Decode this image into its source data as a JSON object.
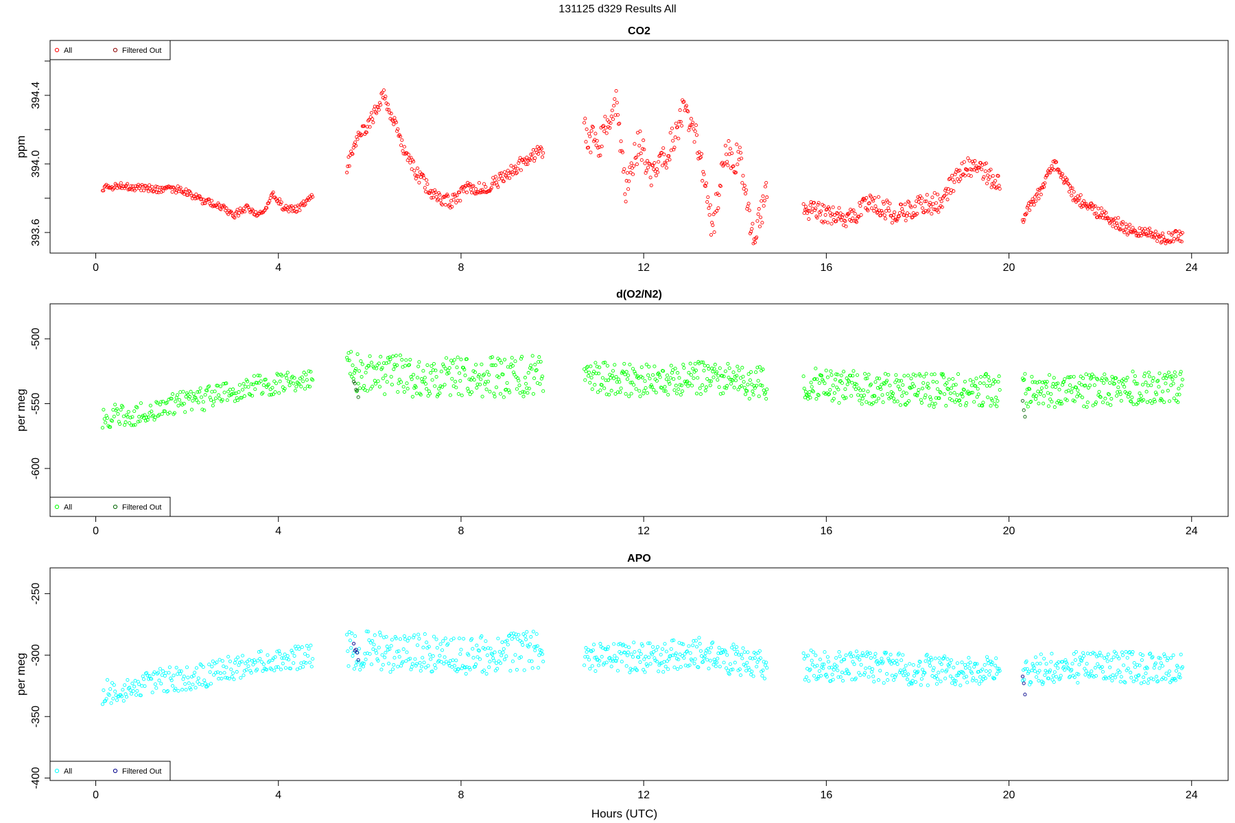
{
  "figure": {
    "title": "131125    d329    Results All",
    "xlabel": "Hours (UTC)"
  },
  "chart_data": [
    {
      "type": "scatter",
      "title": "CO2",
      "ylabel": "ppm",
      "xlim": [
        -1.0,
        24.8
      ],
      "ylim": [
        393.48,
        394.72
      ],
      "xticks": [
        0,
        4,
        8,
        12,
        16,
        20,
        24
      ],
      "xtick_labels": [
        "0",
        "4",
        "8",
        "12",
        "16",
        "20",
        "24"
      ],
      "yticks": [
        393.6,
        393.8,
        394.0,
        394.2,
        394.4,
        394.6
      ],
      "ytick_labels": [
        "393.6",
        "",
        "394.0",
        "",
        "394.4",
        ""
      ],
      "legend": {
        "position": "top-left",
        "entries": [
          {
            "label": "All",
            "color": "#ff0000"
          },
          {
            "label": "Filtered Out",
            "color": "#8b0000"
          }
        ]
      },
      "series": [
        {
          "name": "All",
          "color": "#ff0000",
          "segments": [
            {
              "x": [
                0.15,
                0.6,
                1.0,
                1.5,
                1.9,
                2.3,
                2.7,
                3.0,
                3.3,
                3.6,
                3.9,
                4.1,
                4.4,
                4.75
              ],
              "y": [
                393.86,
                393.87,
                393.86,
                393.85,
                393.85,
                393.79,
                393.76,
                393.7,
                393.74,
                393.7,
                393.82,
                393.75,
                393.73,
                393.82
              ],
              "noise": 0.02,
              "count": 230
            },
            {
              "x": [
                5.5,
                5.8,
                6.0,
                6.3,
                6.7,
                7.0,
                7.4,
                7.8,
                8.1,
                8.5,
                9.0,
                9.4,
                9.8
              ],
              "y": [
                393.98,
                394.18,
                394.24,
                394.4,
                394.12,
                393.95,
                393.82,
                393.78,
                393.85,
                393.86,
                393.93,
                394.02,
                394.08
              ],
              "noise": 0.04,
              "count": 240
            },
            {
              "x": [
                10.7,
                11.0,
                11.4,
                11.6,
                11.9,
                12.2,
                12.5,
                12.9,
                13.2,
                13.5,
                13.8,
                14.1,
                14.4,
                14.7
              ],
              "y": [
                394.2,
                394.1,
                394.38,
                393.85,
                394.12,
                393.92,
                394.05,
                394.32,
                394.1,
                393.62,
                394.05,
                394.02,
                393.55,
                393.85
              ],
              "noise": 0.09,
              "count": 230
            },
            {
              "x": [
                15.5,
                16.0,
                16.5,
                17.0,
                17.5,
                18.0,
                18.5,
                19.0,
                19.5,
                19.8
              ],
              "y": [
                393.74,
                393.7,
                393.68,
                393.78,
                393.7,
                393.75,
                393.78,
                393.98,
                393.95,
                393.88
              ],
              "noise": 0.06,
              "count": 260
            },
            {
              "x": [
                20.3,
                20.7,
                21.0,
                21.4,
                21.8,
                22.2,
                22.6,
                23.0,
                23.4,
                23.8
              ],
              "y": [
                393.68,
                393.85,
                394.0,
                393.82,
                393.74,
                393.68,
                393.62,
                393.6,
                393.57,
                393.58
              ],
              "noise": 0.035,
              "count": 210
            }
          ]
        },
        {
          "name": "Filtered Out",
          "color": "#8b0000",
          "segments": []
        }
      ]
    },
    {
      "type": "scatter",
      "title": "d(O2/N2)",
      "ylabel": "per meg",
      "xlim": [
        -1.0,
        24.8
      ],
      "ylim": [
        -637,
        -473
      ],
      "xticks": [
        0,
        4,
        8,
        12,
        16,
        20,
        24
      ],
      "xtick_labels": [
        "0",
        "4",
        "8",
        "12",
        "16",
        "20",
        "24"
      ],
      "yticks": [
        -600,
        -550,
        -500
      ],
      "ytick_labels": [
        "-600",
        "-550",
        "-500"
      ],
      "legend": {
        "position": "bottom-left",
        "entries": [
          {
            "label": "All",
            "color": "#00ff00"
          },
          {
            "label": "Filtered Out",
            "color": "#006400"
          }
        ]
      },
      "series": [
        {
          "name": "All",
          "color": "#00ff00",
          "segments": [
            {
              "x": [
                0.15,
                0.8,
                1.5,
                2.2,
                3.0,
                3.8,
                4.75
              ],
              "y": [
                -560,
                -558,
                -552,
                -548,
                -540,
                -535,
                -530
              ],
              "noise": 9,
              "count": 220
            },
            {
              "x": [
                5.5,
                6.5,
                7.5,
                8.5,
                9.8
              ],
              "y": [
                -525,
                -528,
                -530,
                -530,
                -528
              ],
              "noise": 16,
              "count": 240
            },
            {
              "x": [
                10.7,
                12.0,
                13.3,
                14.7
              ],
              "y": [
                -530,
                -532,
                -530,
                -535
              ],
              "noise": 13,
              "count": 230
            },
            {
              "x": [
                15.5,
                17.0,
                18.5,
                19.8
              ],
              "y": [
                -535,
                -538,
                -540,
                -540
              ],
              "noise": 13,
              "count": 260
            },
            {
              "x": [
                20.3,
                21.5,
                22.8,
                23.8
              ],
              "y": [
                -540,
                -540,
                -538,
                -538
              ],
              "noise": 13,
              "count": 210
            }
          ]
        },
        {
          "name": "Filtered Out",
          "color": "#006400",
          "segments": [
            {
              "x": [
                5.65,
                5.75
              ],
              "y": [
                -533,
                -542
              ],
              "noise": 3,
              "count": 5
            },
            {
              "x": [
                20.3,
                20.35
              ],
              "y": [
                -545,
                -560
              ],
              "noise": 3,
              "count": 3
            }
          ]
        }
      ]
    },
    {
      "type": "scatter",
      "title": "APO",
      "ylabel": "per meg",
      "xlim": [
        -1.0,
        24.8
      ],
      "ylim": [
        -402,
        -229
      ],
      "xticks": [
        0,
        4,
        8,
        12,
        16,
        20,
        24
      ],
      "xtick_labels": [
        "0",
        "4",
        "8",
        "12",
        "16",
        "20",
        "24"
      ],
      "yticks": [
        -400,
        -350,
        -300,
        -250
      ],
      "ytick_labels": [
        "-400",
        "-350",
        "-300",
        "-250"
      ],
      "legend": {
        "position": "bottom-left",
        "entries": [
          {
            "label": "All",
            "color": "#00ffff"
          },
          {
            "label": "Filtered Out",
            "color": "#00008b"
          }
        ]
      },
      "series": [
        {
          "name": "All",
          "color": "#00ffff",
          "segments": [
            {
              "x": [
                0.15,
                0.8,
                1.5,
                2.2,
                3.0,
                3.8,
                4.75
              ],
              "y": [
                -330,
                -328,
                -320,
                -318,
                -310,
                -305,
                -300
              ],
              "noise": 10,
              "count": 220
            },
            {
              "x": [
                5.5,
                6.5,
                7.5,
                8.5,
                9.8
              ],
              "y": [
                -295,
                -298,
                -298,
                -300,
                -295
              ],
              "noise": 16,
              "count": 240
            },
            {
              "x": [
                10.7,
                12.0,
                13.3,
                14.7
              ],
              "y": [
                -300,
                -302,
                -298,
                -310
              ],
              "noise": 13,
              "count": 230
            },
            {
              "x": [
                15.5,
                17.0,
                18.5,
                19.8
              ],
              "y": [
                -308,
                -310,
                -312,
                -312
              ],
              "noise": 13,
              "count": 260
            },
            {
              "x": [
                20.3,
                21.5,
                22.8,
                23.8
              ],
              "y": [
                -312,
                -310,
                -310,
                -312
              ],
              "noise": 13,
              "count": 210
            }
          ]
        },
        {
          "name": "Filtered Out",
          "color": "#00008b",
          "segments": [
            {
              "x": [
                5.65,
                5.75
              ],
              "y": [
                -292,
                -305
              ],
              "noise": 4,
              "count": 5
            },
            {
              "x": [
                20.3,
                20.35
              ],
              "y": [
                -315,
                -335
              ],
              "noise": 3,
              "count": 3
            }
          ]
        }
      ]
    }
  ]
}
